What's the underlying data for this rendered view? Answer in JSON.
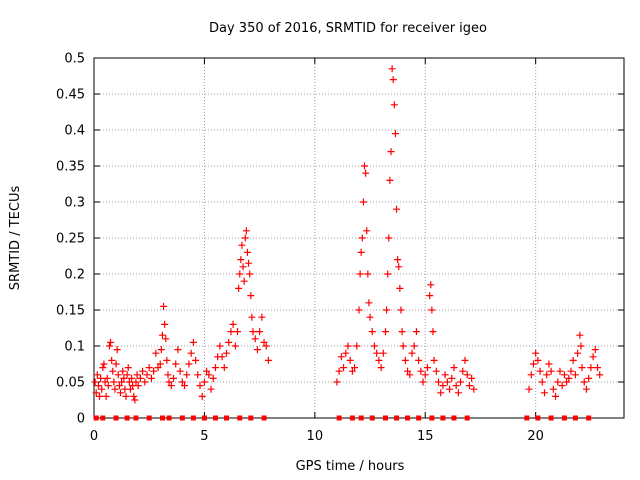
{
  "chart_data": {
    "type": "scatter",
    "title": "Day 350 of 2016, SRMTID for receiver igeo",
    "xlabel": "GPS time / hours",
    "ylabel": "SRMTID / TECUs",
    "xlim": [
      0,
      24
    ],
    "ylim": [
      0,
      0.5
    ],
    "xticks": [
      0,
      5,
      10,
      15,
      20
    ],
    "yticks": [
      0,
      0.05,
      0.1,
      0.15,
      0.2,
      0.25,
      0.3,
      0.35,
      0.4,
      0.45,
      0.5
    ],
    "xtick_labels": [
      "0",
      "5",
      "10",
      "15",
      "20"
    ],
    "ytick_labels": [
      "0",
      "0.05",
      "0.1",
      "0.15",
      "0.2",
      "0.25",
      "0.3",
      "0.35",
      "0.4",
      "0.45",
      "0.5"
    ],
    "grid": true,
    "marker": "+",
    "color": "#ff0000",
    "series": [
      {
        "name": "SRMTID",
        "points": [
          [
            0.05,
            0.05
          ],
          [
            0.1,
            0.035
          ],
          [
            0.15,
            0.06
          ],
          [
            0.2,
            0.045
          ],
          [
            0.25,
            0.03
          ],
          [
            0.3,
            0.055
          ],
          [
            0.35,
            0.04
          ],
          [
            0.4,
            0.07
          ],
          [
            0.45,
            0.075
          ],
          [
            0.5,
            0.05
          ],
          [
            0.55,
            0.03
          ],
          [
            0.6,
            0.055
          ],
          [
            0.65,
            0.045
          ],
          [
            0.7,
            0.1
          ],
          [
            0.75,
            0.105
          ],
          [
            0.8,
            0.08
          ],
          [
            0.85,
            0.065
          ],
          [
            0.9,
            0.05
          ],
          [
            0.95,
            0.04
          ],
          [
            1.0,
            0.075
          ],
          [
            1.05,
            0.095
          ],
          [
            1.1,
            0.06
          ],
          [
            1.15,
            0.045
          ],
          [
            1.2,
            0.035
          ],
          [
            1.25,
            0.05
          ],
          [
            1.3,
            0.065
          ],
          [
            1.35,
            0.055
          ],
          [
            1.4,
            0.04
          ],
          [
            1.45,
            0.03
          ],
          [
            1.5,
            0.06
          ],
          [
            1.55,
            0.07
          ],
          [
            1.6,
            0.05
          ],
          [
            1.65,
            0.04
          ],
          [
            1.7,
            0.055
          ],
          [
            1.75,
            0.045
          ],
          [
            1.8,
            0.03
          ],
          [
            1.85,
            0.025
          ],
          [
            1.9,
            0.05
          ],
          [
            1.95,
            0.06
          ],
          [
            2.0,
            0.045
          ],
          [
            2.1,
            0.055
          ],
          [
            2.2,
            0.065
          ],
          [
            2.3,
            0.05
          ],
          [
            2.4,
            0.06
          ],
          [
            2.5,
            0.07
          ],
          [
            2.6,
            0.055
          ],
          [
            2.7,
            0.065
          ],
          [
            2.8,
            0.09
          ],
          [
            2.9,
            0.07
          ],
          [
            3.0,
            0.075
          ],
          [
            3.05,
            0.095
          ],
          [
            3.1,
            0.115
          ],
          [
            3.15,
            0.155
          ],
          [
            3.2,
            0.13
          ],
          [
            3.25,
            0.11
          ],
          [
            3.3,
            0.08
          ],
          [
            3.35,
            0.06
          ],
          [
            3.4,
            0.05
          ],
          [
            3.5,
            0.045
          ],
          [
            3.6,
            0.055
          ],
          [
            3.7,
            0.075
          ],
          [
            3.8,
            0.095
          ],
          [
            3.9,
            0.065
          ],
          [
            4.0,
            0.05
          ],
          [
            4.1,
            0.045
          ],
          [
            4.2,
            0.06
          ],
          [
            4.3,
            0.075
          ],
          [
            4.4,
            0.09
          ],
          [
            4.5,
            0.105
          ],
          [
            4.6,
            0.08
          ],
          [
            4.7,
            0.06
          ],
          [
            4.8,
            0.045
          ],
          [
            4.9,
            0.03
          ],
          [
            5.0,
            0.05
          ],
          [
            5.1,
            0.065
          ],
          [
            5.2,
            0.06
          ],
          [
            5.3,
            0.04
          ],
          [
            5.4,
            0.055
          ],
          [
            5.5,
            0.07
          ],
          [
            5.6,
            0.085
          ],
          [
            5.7,
            0.1
          ],
          [
            5.8,
            0.085
          ],
          [
            5.9,
            0.07
          ],
          [
            6.0,
            0.09
          ],
          [
            6.1,
            0.105
          ],
          [
            6.2,
            0.12
          ],
          [
            6.3,
            0.13
          ],
          [
            6.4,
            0.1
          ],
          [
            6.5,
            0.12
          ],
          [
            6.55,
            0.18
          ],
          [
            6.6,
            0.2
          ],
          [
            6.65,
            0.22
          ],
          [
            6.7,
            0.24
          ],
          [
            6.75,
            0.21
          ],
          [
            6.8,
            0.19
          ],
          [
            6.85,
            0.25
          ],
          [
            6.9,
            0.26
          ],
          [
            6.95,
            0.23
          ],
          [
            7.0,
            0.215
          ],
          [
            7.05,
            0.2
          ],
          [
            7.1,
            0.17
          ],
          [
            7.15,
            0.14
          ],
          [
            7.2,
            0.12
          ],
          [
            7.3,
            0.11
          ],
          [
            7.4,
            0.095
          ],
          [
            7.5,
            0.12
          ],
          [
            7.6,
            0.14
          ],
          [
            7.7,
            0.105
          ],
          [
            7.8,
            0.1
          ],
          [
            7.9,
            0.08
          ],
          [
            11.0,
            0.05
          ],
          [
            11.1,
            0.065
          ],
          [
            11.2,
            0.085
          ],
          [
            11.3,
            0.07
          ],
          [
            11.4,
            0.09
          ],
          [
            11.5,
            0.1
          ],
          [
            11.6,
            0.08
          ],
          [
            11.7,
            0.065
          ],
          [
            11.8,
            0.07
          ],
          [
            11.9,
            0.1
          ],
          [
            12.0,
            0.15
          ],
          [
            12.05,
            0.2
          ],
          [
            12.1,
            0.23
          ],
          [
            12.15,
            0.25
          ],
          [
            12.2,
            0.3
          ],
          [
            12.25,
            0.35
          ],
          [
            12.3,
            0.34
          ],
          [
            12.35,
            0.26
          ],
          [
            12.4,
            0.2
          ],
          [
            12.45,
            0.16
          ],
          [
            12.5,
            0.14
          ],
          [
            12.6,
            0.12
          ],
          [
            12.7,
            0.1
          ],
          [
            12.8,
            0.09
          ],
          [
            12.9,
            0.08
          ],
          [
            13.0,
            0.07
          ],
          [
            13.1,
            0.09
          ],
          [
            13.2,
            0.12
          ],
          [
            13.25,
            0.15
          ],
          [
            13.3,
            0.2
          ],
          [
            13.35,
            0.25
          ],
          [
            13.4,
            0.33
          ],
          [
            13.45,
            0.37
          ],
          [
            13.5,
            0.485
          ],
          [
            13.55,
            0.47
          ],
          [
            13.6,
            0.435
          ],
          [
            13.65,
            0.395
          ],
          [
            13.7,
            0.29
          ],
          [
            13.75,
            0.22
          ],
          [
            13.8,
            0.21
          ],
          [
            13.85,
            0.18
          ],
          [
            13.9,
            0.15
          ],
          [
            13.95,
            0.12
          ],
          [
            14.0,
            0.1
          ],
          [
            14.1,
            0.08
          ],
          [
            14.2,
            0.065
          ],
          [
            14.3,
            0.06
          ],
          [
            14.4,
            0.09
          ],
          [
            14.5,
            0.1
          ],
          [
            14.6,
            0.12
          ],
          [
            14.7,
            0.08
          ],
          [
            14.8,
            0.065
          ],
          [
            14.9,
            0.05
          ],
          [
            15.0,
            0.06
          ],
          [
            15.1,
            0.07
          ],
          [
            15.2,
            0.17
          ],
          [
            15.25,
            0.185
          ],
          [
            15.3,
            0.15
          ],
          [
            15.35,
            0.12
          ],
          [
            15.4,
            0.08
          ],
          [
            15.5,
            0.065
          ],
          [
            15.6,
            0.05
          ],
          [
            15.7,
            0.035
          ],
          [
            15.8,
            0.045
          ],
          [
            15.9,
            0.06
          ],
          [
            16.0,
            0.05
          ],
          [
            16.1,
            0.04
          ],
          [
            16.2,
            0.055
          ],
          [
            16.3,
            0.07
          ],
          [
            16.4,
            0.045
          ],
          [
            16.5,
            0.035
          ],
          [
            16.6,
            0.05
          ],
          [
            16.7,
            0.065
          ],
          [
            16.8,
            0.08
          ],
          [
            16.9,
            0.06
          ],
          [
            17.0,
            0.045
          ],
          [
            17.1,
            0.055
          ],
          [
            17.2,
            0.04
          ],
          [
            19.7,
            0.04
          ],
          [
            19.8,
            0.06
          ],
          [
            19.9,
            0.075
          ],
          [
            20.0,
            0.09
          ],
          [
            20.1,
            0.08
          ],
          [
            20.2,
            0.065
          ],
          [
            20.3,
            0.05
          ],
          [
            20.4,
            0.035
          ],
          [
            20.5,
            0.06
          ],
          [
            20.6,
            0.075
          ],
          [
            20.7,
            0.065
          ],
          [
            20.8,
            0.04
          ],
          [
            20.9,
            0.03
          ],
          [
            21.0,
            0.05
          ],
          [
            21.1,
            0.065
          ],
          [
            21.2,
            0.045
          ],
          [
            21.3,
            0.06
          ],
          [
            21.4,
            0.05
          ],
          [
            21.5,
            0.055
          ],
          [
            21.6,
            0.065
          ],
          [
            21.7,
            0.08
          ],
          [
            21.8,
            0.06
          ],
          [
            21.9,
            0.09
          ],
          [
            22.0,
            0.115
          ],
          [
            22.05,
            0.1
          ],
          [
            22.1,
            0.07
          ],
          [
            22.2,
            0.05
          ],
          [
            22.3,
            0.04
          ],
          [
            22.4,
            0.055
          ],
          [
            22.5,
            0.07
          ],
          [
            22.6,
            0.085
          ],
          [
            22.7,
            0.095
          ],
          [
            22.8,
            0.07
          ],
          [
            22.9,
            0.06
          ]
        ],
        "zero_markers_x": [
          0.1,
          0.4,
          1.0,
          1.5,
          1.9,
          2.5,
          3.1,
          3.4,
          4.0,
          4.5,
          5.0,
          5.5,
          6.0,
          6.6,
          7.1,
          7.7,
          11.1,
          11.7,
          12.1,
          12.6,
          13.2,
          13.7,
          14.2,
          14.7,
          15.3,
          15.8,
          16.3,
          16.9,
          19.6,
          20.1,
          20.7,
          21.3,
          21.8,
          22.4
        ]
      }
    ]
  }
}
